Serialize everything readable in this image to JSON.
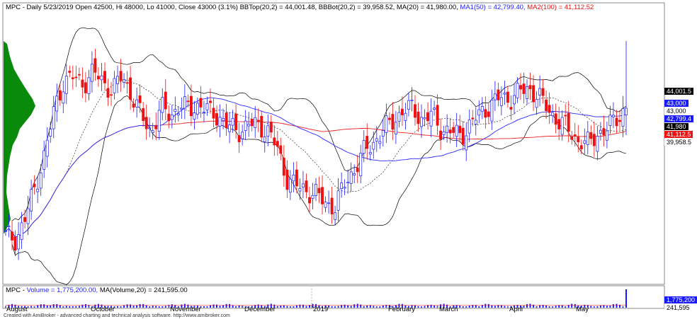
{
  "header": {
    "prefix": "MPC - Daily 5/23/2019 Open 42500, Hi 48000, Lo 41000, Close 43000 (3.1%) BBTop(20,2) = 44,001.48, BBBot(20,2) = 39,958.52, MA(20) = 41,980.00, ",
    "ma1": "MA1(50) = 42,799.40,",
    "ma2": "MA2(100) = 41,112.52"
  },
  "volume_header": {
    "prefix": "MPC - ",
    "vol": "Volume = 1,775,200.00,",
    "ma": "MA(Volume,20) = 241,595.00"
  },
  "price_labels": {
    "bbtop": "44,001.5",
    "close": "43,000",
    "ma1": "42,799.4",
    "close2": "43,000",
    "ma20": "41,980",
    "ma2": "41,112.5",
    "bbbot": "39,958.5"
  },
  "volume_labels": {
    "vol": "1,775,200",
    "ma": "241,595"
  },
  "months": [
    "August",
    "October",
    "November",
    "December",
    "2019",
    "February",
    "March",
    "April",
    "May"
  ],
  "credit": "Created with AmiBroker - advanced charting and technical analysis software. http://www.amibroker.com",
  "colors": {
    "up": "#1a1aff",
    "down": "#ee1111",
    "ma1": "#2a2aff",
    "ma2": "#ee2222",
    "bb": "#000000",
    "volume_profile": "#0a8a0a"
  },
  "chart_data": {
    "type": "candlestick",
    "symbol": "MPC",
    "interval": "Daily",
    "last_bar": {
      "date": "5/23/2019",
      "open": 42500,
      "high": 48000,
      "low": 41000,
      "close": 43000,
      "change_pct": 3.1
    },
    "indicators": {
      "BBTop(20,2)": 44001.48,
      "BBBot(20,2)": 39958.52,
      "MA(20)": 41980.0,
      "MA1(50)": 42799.4,
      "MA2(100)": 41112.52
    },
    "volume": {
      "last": 1775200.0,
      "MA(Volume,20)": 241595.0
    },
    "x_axis_labels": [
      "August",
      "October",
      "November",
      "December",
      "2019",
      "February",
      "March",
      "April",
      "May"
    ],
    "close_path": [
      33500,
      33200,
      34800,
      37000,
      39600,
      42800,
      45100,
      45300,
      44800,
      45700,
      45000,
      44300,
      45400,
      44000,
      42400,
      41200,
      43000,
      42500,
      43200,
      42900,
      43300,
      42700,
      42400,
      41600,
      41300,
      41800,
      41700,
      41400,
      40000,
      37800,
      37200,
      36900,
      36600,
      35900,
      35700,
      37400,
      38500,
      39800,
      40500,
      41400,
      42100,
      42800,
      43000,
      42100,
      42500,
      41400,
      41200,
      41000,
      41800,
      42700,
      43200,
      43800,
      43700,
      44200,
      44500,
      43800,
      42900,
      42000,
      41500,
      40600,
      40300,
      41100,
      41400,
      42300,
      43000
    ]
  }
}
